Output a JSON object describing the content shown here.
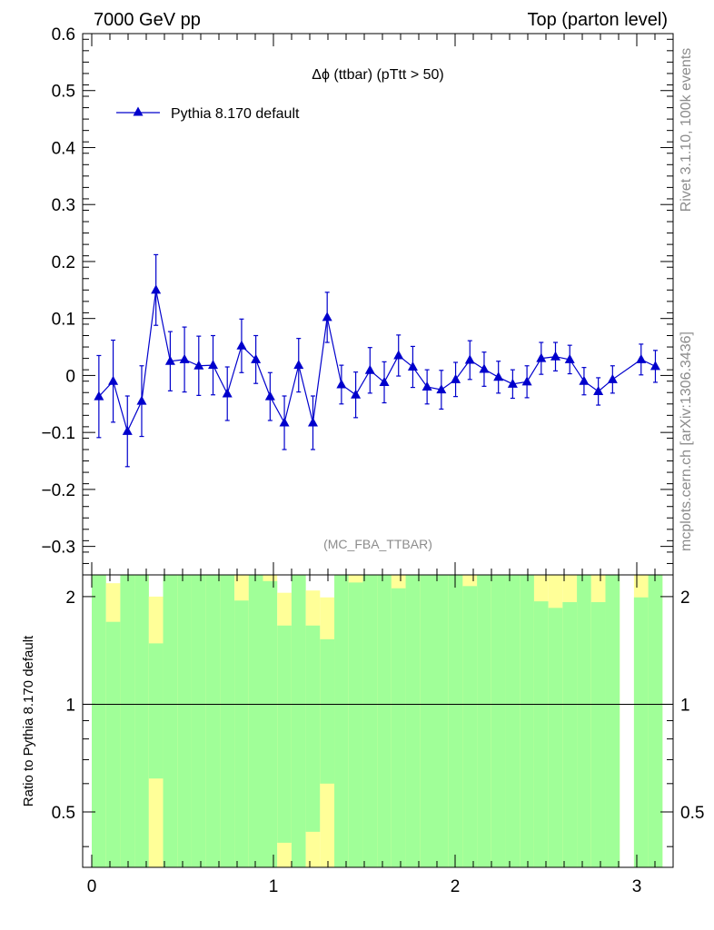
{
  "header": {
    "left": "7000 GeV pp",
    "right": "Top (parton level)"
  },
  "side": {
    "upper": "Rivet 3.1.10,  100k events",
    "lower": "mcplots.cern.ch [arXiv:1306.3436]"
  },
  "chart_data": [
    {
      "type": "line",
      "title": "Δϕ (ttbar) (pTtt > 50)",
      "watermark": "(MC_FBA_TTBAR)",
      "xlabel": "",
      "ylabel": "",
      "xlim": [
        -0.05,
        3.2
      ],
      "ylim": [
        -0.35,
        0.6
      ],
      "y_ticks": [
        -0.3,
        -0.2,
        -0.1,
        0,
        0.1,
        0.2,
        0.3,
        0.4,
        0.5,
        0.6
      ],
      "y_tick_labels": [
        "−0.3",
        "−0.2",
        "−0.1",
        "0",
        "0.1",
        "0.2",
        "0.3",
        "0.4",
        "0.5",
        "0.6"
      ],
      "legend": "top-left",
      "series": [
        {
          "name": "Pythia 8.170 default",
          "color": "#0000cc",
          "x": [
            0.0393,
            0.1178,
            0.1963,
            0.2749,
            0.3534,
            0.432,
            0.5105,
            0.589,
            0.6676,
            0.7461,
            0.8247,
            0.9032,
            0.9817,
            1.0603,
            1.1388,
            1.2174,
            1.2959,
            1.3744,
            1.453,
            1.5315,
            1.6101,
            1.6886,
            1.7671,
            1.8457,
            1.9242,
            2.0028,
            2.0813,
            2.1598,
            2.2384,
            2.3169,
            2.3955,
            2.474,
            2.5525,
            2.6311,
            2.7096,
            2.7882,
            2.8667,
            3.0238,
            3.1023
          ],
          "y": [
            -0.037,
            -0.01,
            -0.098,
            -0.045,
            0.15,
            0.025,
            0.028,
            0.017,
            0.018,
            -0.032,
            0.052,
            0.028,
            -0.037,
            -0.083,
            0.018,
            -0.083,
            0.102,
            -0.016,
            -0.034,
            0.009,
            -0.012,
            0.035,
            0.015,
            -0.02,
            -0.025,
            -0.007,
            0.027,
            0.011,
            -0.003,
            -0.015,
            -0.011,
            0.03,
            0.033,
            0.028,
            -0.01,
            -0.028,
            -0.007,
            0.028,
            0.016
          ],
          "yerr": [
            0.072,
            0.072,
            0.062,
            0.062,
            0.062,
            0.052,
            0.057,
            0.052,
            0.052,
            0.047,
            0.047,
            0.042,
            0.042,
            0.047,
            0.047,
            0.047,
            0.044,
            0.034,
            0.04,
            0.04,
            0.036,
            0.036,
            0.036,
            0.03,
            0.034,
            0.03,
            0.034,
            0.03,
            0.028,
            0.025,
            0.028,
            0.028,
            0.025,
            0.025,
            0.024,
            0.024,
            0.024,
            0.027,
            0.028
          ]
        }
      ]
    },
    {
      "type": "bar",
      "title": "",
      "xlabel": "",
      "ylabel": "Ratio to Pythia 8.170 default",
      "xlim": [
        -0.05,
        3.2
      ],
      "ylim": [
        0.35,
        2.3
      ],
      "y_ticks": [
        0.5,
        1,
        2
      ],
      "y_tick_labels": [
        "0.5",
        "1",
        "2"
      ],
      "x_ticks": [
        0,
        1,
        2,
        3
      ],
      "x_tick_labels": [
        "0",
        "1",
        "2",
        "3"
      ],
      "reference_line": 1,
      "band_colors": {
        "inner": "#a0ff98",
        "outer": "#ffff98"
      },
      "bins": {
        "edges": [
          0.0,
          0.0785,
          0.1571,
          0.2356,
          0.3142,
          0.3927,
          0.4712,
          0.5498,
          0.6283,
          0.7069,
          0.7854,
          0.8639,
          0.9425,
          1.021,
          1.0996,
          1.1781,
          1.2566,
          1.3352,
          1.4137,
          1.4923,
          1.5708,
          1.6493,
          1.7279,
          1.8064,
          1.885,
          1.9635,
          2.042,
          2.1206,
          2.1991,
          2.2777,
          2.3562,
          2.4347,
          2.5133,
          2.5918,
          2.6704,
          2.7489,
          2.8274,
          2.906,
          2.9845,
          3.0631,
          3.1416
        ],
        "inner": [
          [
            0.35,
            2.3
          ],
          [
            0.35,
            2.3
          ],
          [
            0.35,
            2.3
          ],
          [
            0.35,
            2.3
          ],
          [
            0.62,
            1.48
          ],
          [
            0.35,
            2.3
          ],
          [
            0.35,
            2.3
          ],
          [
            0.35,
            2.3
          ],
          [
            0.35,
            2.3
          ],
          [
            0.35,
            2.3
          ],
          [
            0.35,
            2.3
          ],
          [
            0.35,
            2.3
          ],
          [
            0.35,
            2.3
          ],
          [
            0.41,
            1.66
          ],
          [
            0.35,
            2.3
          ],
          [
            0.44,
            1.66
          ],
          [
            0.6,
            1.52
          ],
          [
            0.35,
            2.3
          ],
          [
            0.35,
            2.3
          ],
          [
            0.35,
            2.3
          ],
          [
            0.35,
            2.3
          ],
          [
            0.35,
            2.3
          ],
          [
            0.35,
            2.3
          ],
          [
            0.35,
            2.3
          ],
          [
            0.35,
            2.3
          ],
          [
            0.35,
            2.3
          ],
          [
            0.35,
            2.3
          ],
          [
            0.35,
            2.3
          ],
          [
            0.35,
            2.3
          ],
          [
            0.35,
            2.3
          ],
          [
            0.35,
            2.3
          ],
          [
            0.35,
            2.3
          ],
          [
            0.35,
            2.3
          ],
          [
            0.35,
            2.3
          ],
          [
            0.35,
            2.3
          ],
          [
            0.35,
            2.3
          ],
          [
            0.35,
            2.3
          ],
          [
            null,
            null
          ],
          [
            0.35,
            2.3
          ],
          [
            0.35,
            2.3
          ]
        ],
        "outer": [
          [
            0.35,
            2.3
          ],
          [
            0.35,
            2.3
          ],
          [
            0.35,
            2.3
          ],
          [
            0.35,
            2.3
          ],
          [
            0.35,
            2.3
          ],
          [
            0.35,
            2.3
          ],
          [
            0.35,
            2.3
          ],
          [
            0.35,
            2.3
          ],
          [
            0.35,
            2.3
          ],
          [
            0.35,
            2.3
          ],
          [
            0.35,
            2.3
          ],
          [
            0.35,
            2.3
          ],
          [
            0.35,
            2.3
          ],
          [
            0.35,
            2.3
          ],
          [
            0.35,
            2.3
          ],
          [
            0.35,
            2.3
          ],
          [
            0.35,
            2.3
          ],
          [
            0.35,
            2.3
          ],
          [
            0.35,
            2.3
          ],
          [
            0.35,
            2.3
          ],
          [
            0.35,
            2.3
          ],
          [
            0.35,
            2.3
          ],
          [
            0.35,
            2.3
          ],
          [
            0.35,
            2.3
          ],
          [
            0.35,
            2.3
          ],
          [
            0.35,
            2.3
          ],
          [
            0.35,
            2.3
          ],
          [
            0.35,
            2.3
          ],
          [
            0.35,
            2.3
          ],
          [
            0.35,
            2.3
          ],
          [
            0.35,
            2.3
          ],
          [
            0.35,
            2.3
          ],
          [
            0.35,
            2.3
          ],
          [
            0.35,
            2.3
          ],
          [
            0.35,
            2.3
          ],
          [
            0.35,
            2.3
          ],
          [
            0.35,
            2.3
          ],
          [
            null,
            null
          ],
          [
            0.35,
            2.3
          ],
          [
            0.35,
            2.3
          ]
        ],
        "outer_limits": [
          [
            0.35,
            2.3
          ],
          [
            0.35,
            2.18
          ],
          [
            0.35,
            2.3
          ],
          [
            0.35,
            2.3
          ],
          [
            0.35,
            2.3
          ],
          [
            0.35,
            2.3
          ],
          [
            0.35,
            2.3
          ],
          [
            0.35,
            2.3
          ],
          [
            0.35,
            2.3
          ],
          [
            0.35,
            2.3
          ],
          [
            0.35,
            2.3
          ],
          [
            0.35,
            2.3
          ],
          [
            0.35,
            2.3
          ],
          [
            0.35,
            2.3
          ],
          [
            0.35,
            2.3
          ],
          [
            0.35,
            2.19
          ],
          [
            0.35,
            2.3
          ],
          [
            0.35,
            2.3
          ],
          [
            0.35,
            2.3
          ],
          [
            0.35,
            2.3
          ],
          [
            0.35,
            2.3
          ],
          [
            0.35,
            2.3
          ],
          [
            0.35,
            2.3
          ],
          [
            0.35,
            2.3
          ],
          [
            0.35,
            2.3
          ],
          [
            0.35,
            2.3
          ],
          [
            0.35,
            2.3
          ],
          [
            0.35,
            2.3
          ],
          [
            0.35,
            2.3
          ],
          [
            0.35,
            2.3
          ],
          [
            0.35,
            2.3
          ],
          [
            0.35,
            2.3
          ],
          [
            0.35,
            2.3
          ],
          [
            0.35,
            2.3
          ],
          [
            0.35,
            2.3
          ],
          [
            0.35,
            2.3
          ],
          [
            0.35,
            2.3
          ],
          [
            null,
            null
          ],
          [
            0.35,
            2.3
          ],
          [
            0.35,
            2.3
          ]
        ],
        "inner_top": [
          2.3,
          1.7,
          2.3,
          2.3,
          1.48,
          2.3,
          2.3,
          2.3,
          2.3,
          2.3,
          1.95,
          2.3,
          2.21,
          1.66,
          2.3,
          1.66,
          1.52,
          2.3,
          2.19,
          2.3,
          2.3,
          2.11,
          2.3,
          2.3,
          2.3,
          2.3,
          2.14,
          2.3,
          2.3,
          2.3,
          2.3,
          1.94,
          1.86,
          1.93,
          2.3,
          1.93,
          2.3,
          null,
          1.99,
          2.3
        ],
        "inner_bottom": [
          0.35,
          0.35,
          0.35,
          0.35,
          0.62,
          0.35,
          0.35,
          0.35,
          0.35,
          0.35,
          0.35,
          0.35,
          0.35,
          0.41,
          0.35,
          0.44,
          0.6,
          0.35,
          0.35,
          0.35,
          0.35,
          0.35,
          0.35,
          0.35,
          0.35,
          0.35,
          0.35,
          0.35,
          0.35,
          0.35,
          0.35,
          0.35,
          0.35,
          0.35,
          0.35,
          0.35,
          0.35,
          null,
          0.35,
          0.35
        ],
        "outer_top": [
          2.3,
          2.18,
          2.26,
          2.3,
          2.0,
          2.3,
          2.3,
          2.3,
          2.3,
          2.3,
          2.3,
          2.3,
          2.3,
          2.05,
          2.3,
          2.08,
          1.99,
          2.3,
          2.3,
          2.3,
          2.3,
          2.3,
          2.3,
          2.3,
          2.3,
          2.3,
          2.3,
          2.3,
          2.3,
          2.3,
          2.3,
          2.3,
          2.3,
          2.3,
          2.3,
          2.3,
          2.3,
          null,
          2.3,
          2.3
        ],
        "outer_bottom": [
          0.35,
          0.35,
          0.35,
          0.35,
          0.35,
          0.35,
          0.35,
          0.35,
          0.35,
          0.35,
          0.35,
          0.35,
          0.35,
          0.35,
          0.35,
          0.35,
          0.35,
          0.35,
          0.35,
          0.35,
          0.35,
          0.35,
          0.35,
          0.35,
          0.35,
          0.35,
          0.35,
          0.35,
          0.35,
          0.35,
          0.35,
          0.35,
          0.35,
          0.35,
          0.35,
          0.35,
          0.35,
          null,
          0.35,
          0.35
        ]
      }
    }
  ]
}
